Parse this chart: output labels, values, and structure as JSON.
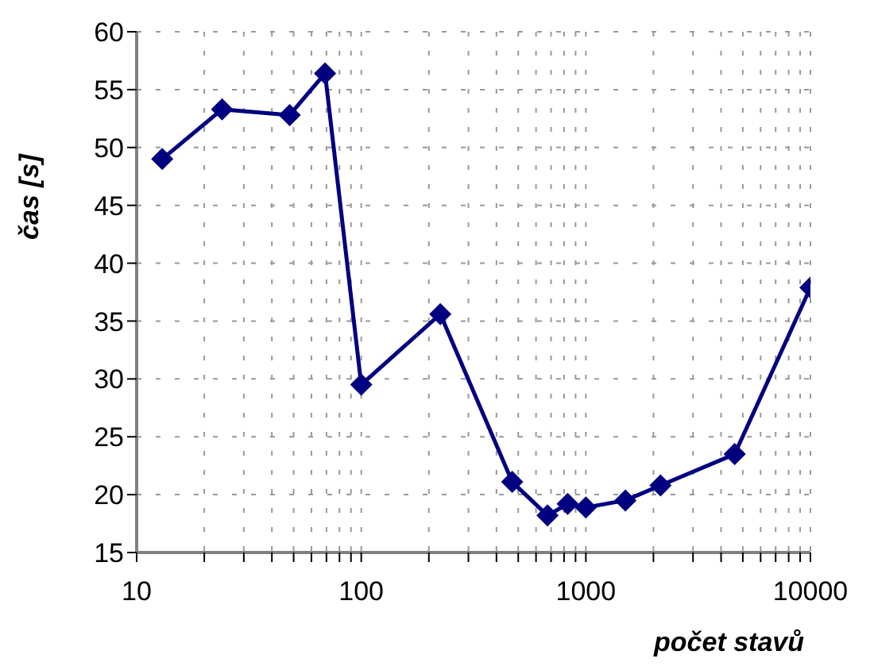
{
  "chart_data": {
    "type": "line",
    "xlabel": "počet stavů",
    "ylabel": "čas [s]",
    "log": "x",
    "x": [
      13,
      24,
      48,
      69,
      100,
      225,
      470,
      675,
      830,
      1000,
      1500,
      2150,
      4600,
      10000
    ],
    "series": [
      {
        "color": "#000080",
        "values": [
          49,
          53.3,
          52.8,
          56.4,
          29.5,
          35.6,
          21.1,
          18.2,
          19.2,
          18.9,
          19.5,
          20.8,
          23.5,
          37.9
        ]
      }
    ],
    "xlim": [
      10,
      10000
    ],
    "xticks": [
      10,
      {
        "value": 20,
        "label": null
      },
      {
        "value": 30,
        "label": null
      },
      {
        "value": 40,
        "label": null
      },
      {
        "value": 50,
        "label": null
      },
      {
        "value": 60,
        "label": null
      },
      {
        "value": 70,
        "label": null
      },
      {
        "value": 80,
        "label": null
      },
      {
        "value": 90,
        "label": null
      },
      100,
      {
        "value": 200,
        "label": null
      },
      {
        "value": 300,
        "label": null
      },
      {
        "value": 400,
        "label": null
      },
      {
        "value": 500,
        "label": null
      },
      {
        "value": 600,
        "label": null
      },
      {
        "value": 700,
        "label": null
      },
      {
        "value": 800,
        "label": null
      },
      {
        "value": 900,
        "label": null
      },
      1000,
      {
        "value": 2000,
        "label": null
      },
      {
        "value": 3000,
        "label": null
      },
      {
        "value": 4000,
        "label": null
      },
      {
        "value": 5000,
        "label": null
      },
      {
        "value": 6000,
        "label": null
      },
      {
        "value": 7000,
        "label": null
      },
      {
        "value": 8000,
        "label": null
      },
      {
        "value": 9000,
        "label": null
      },
      10000
    ],
    "ylim": [
      15,
      60
    ],
    "yticks": [
      15,
      20,
      25,
      30,
      35,
      40,
      45,
      50,
      55,
      60
    ],
    "grid": true,
    "marker": "diamond",
    "line_style": "solid",
    "legend": false
  }
}
